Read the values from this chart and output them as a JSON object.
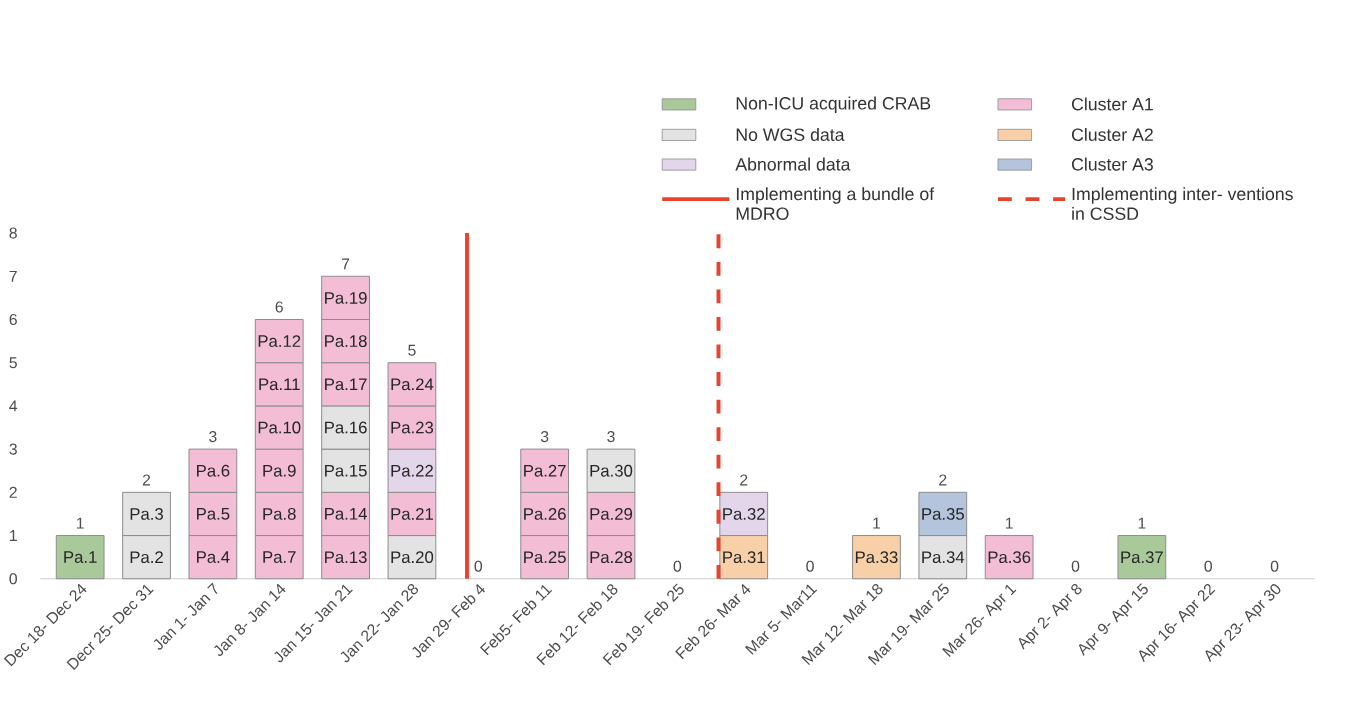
{
  "chart_data": {
    "type": "bar",
    "stacked": true,
    "categories": [
      "Dec 18- Dec 24",
      "Decr 25- Dec 31",
      "Jan 1- Jan 7",
      "Jan 8- Jan 14",
      "Jan 15- Jan 21",
      "Jan 22- Jan 28",
      "Jan 29- Feb 4",
      "Feb5- Feb 11",
      "Feb 12- Feb 18",
      "Feb 19- Feb 25",
      "Feb 26- Mar 4",
      "Mar 5- Mar11",
      "Mar 12- Mar 18",
      "Mar 19- Mar 25",
      "Mar 26- Apr 1",
      "Apr 2- Apr 8",
      "Apr 9- Apr 15",
      "Apr 16- Apr 22",
      "Apr 23- Apr 30"
    ],
    "series": [
      {
        "values": [
          1,
          1,
          1,
          1,
          1,
          1,
          null,
          1,
          1,
          null,
          1,
          null,
          1,
          1,
          1,
          null,
          1,
          null,
          null
        ],
        "colors": [
          "#a9c99b",
          "#e3e3e3",
          "#f2bdd5",
          "#f2bdd5",
          "#f2bdd5",
          "#e3e3e3",
          null,
          "#f2bdd5",
          "#f2bdd5",
          null,
          "#f8d0a8",
          null,
          "#f8d0a8",
          "#e3e3e3",
          "#f2bdd5",
          null,
          "#a9c99b",
          null,
          null
        ],
        "value_labels": [
          "Pa.1",
          "Pa.2",
          "Pa.4",
          "Pa.7",
          "Pa.13",
          "Pa.20",
          null,
          "Pa.25",
          "Pa.28",
          null,
          "Pa.31",
          null,
          "Pa.33",
          "Pa.34",
          "Pa.36",
          null,
          "Pa.37",
          null,
          null
        ]
      },
      {
        "values": [
          null,
          1,
          1,
          1,
          1,
          1,
          null,
          1,
          1,
          null,
          1,
          null,
          null,
          1,
          null,
          null,
          null,
          null,
          null
        ],
        "colors": [
          null,
          "#e3e3e3",
          "#f2bdd5",
          "#f2bdd5",
          "#f2bdd5",
          "#f2bdd5",
          null,
          "#f2bdd5",
          "#f2bdd5",
          null,
          "#e3d6ea",
          null,
          null,
          "#b4c4dd",
          null,
          null,
          null,
          null,
          null
        ],
        "value_labels": [
          null,
          "Pa.3",
          "Pa.5",
          "Pa.8",
          "Pa.14",
          "Pa.21",
          null,
          "Pa.26",
          "Pa.29",
          null,
          "Pa.32",
          null,
          null,
          "Pa.35",
          null,
          null,
          null,
          null,
          null
        ]
      },
      {
        "values": [
          null,
          null,
          1,
          1,
          1,
          1,
          null,
          1,
          1,
          null,
          null,
          null,
          null,
          null,
          null,
          null,
          null,
          null,
          null
        ],
        "colors": [
          null,
          null,
          "#f2bdd5",
          "#f2bdd5",
          "#e3e3e3",
          "#e3d6ea",
          null,
          "#f2bdd5",
          "#e3e3e3",
          null,
          null,
          null,
          null,
          null,
          null,
          null,
          null,
          null,
          null
        ],
        "value_labels": [
          null,
          null,
          "Pa.6",
          "Pa.9",
          "Pa.15",
          "Pa.22",
          null,
          "Pa.27",
          "Pa.30",
          null,
          null,
          null,
          null,
          null,
          null,
          null,
          null,
          null,
          null
        ]
      },
      {
        "values": [
          null,
          null,
          null,
          1,
          1,
          1,
          null,
          null,
          null,
          null,
          null,
          null,
          null,
          null,
          null,
          null,
          null,
          null,
          null
        ],
        "colors": [
          null,
          null,
          null,
          "#f2bdd5",
          "#e3e3e3",
          "#f2bdd5",
          null,
          null,
          null,
          null,
          null,
          null,
          null,
          null,
          null,
          null,
          null,
          null,
          null
        ],
        "value_labels": [
          null,
          null,
          null,
          "Pa.10",
          "Pa.16",
          "Pa.23",
          null,
          null,
          null,
          null,
          null,
          null,
          null,
          null,
          null,
          null,
          null,
          null,
          null
        ]
      },
      {
        "values": [
          null,
          null,
          null,
          1,
          1,
          1,
          null,
          null,
          null,
          null,
          null,
          null,
          null,
          null,
          null,
          null,
          null,
          null,
          null
        ],
        "colors": [
          null,
          null,
          null,
          "#f2bdd5",
          "#f2bdd5",
          "#f2bdd5",
          null,
          null,
          null,
          null,
          null,
          null,
          null,
          null,
          null,
          null,
          null,
          null,
          null
        ],
        "value_labels": [
          null,
          null,
          null,
          "Pa.11",
          "Pa.17",
          "Pa.24",
          null,
          null,
          null,
          null,
          null,
          null,
          null,
          null,
          null,
          null,
          null,
          null,
          null
        ]
      },
      {
        "values": [
          null,
          null,
          null,
          1,
          1,
          null,
          null,
          null,
          null,
          null,
          null,
          null,
          null,
          null,
          null,
          null,
          null,
          null,
          null
        ],
        "colors": [
          null,
          null,
          null,
          "#f2bdd5",
          "#f2bdd5",
          null,
          null,
          null,
          null,
          null,
          null,
          null,
          null,
          null,
          null,
          null,
          null,
          null,
          null
        ],
        "value_labels": [
          null,
          null,
          null,
          "Pa.12",
          "Pa.18",
          null,
          null,
          null,
          null,
          null,
          null,
          null,
          null,
          null,
          null,
          null,
          null,
          null,
          null
        ]
      },
      {
        "values": [
          null,
          null,
          null,
          null,
          1,
          null,
          null,
          null,
          null,
          null,
          null,
          null,
          null,
          null,
          null,
          null,
          null,
          null,
          null
        ],
        "colors": [
          null,
          null,
          null,
          null,
          "#f2bdd5",
          null,
          null,
          null,
          null,
          null,
          null,
          null,
          null,
          null,
          null,
          null,
          null,
          null,
          null
        ],
        "value_labels": [
          null,
          null,
          null,
          null,
          "Pa.19",
          null,
          null,
          null,
          null,
          null,
          null,
          null,
          null,
          null,
          null,
          null,
          null,
          null,
          null
        ]
      },
      {
        "name": "Non-ICU acquired CRAB",
        "color": "#a9c99b",
        "values": [
          null,
          null,
          null,
          null,
          null,
          null,
          null,
          null,
          null,
          null,
          null,
          null,
          null,
          null,
          null,
          null,
          null,
          null,
          null
        ]
      },
      {
        "name": "Cluster A1",
        "color": "#f2bdd5",
        "values": [
          null,
          null,
          null,
          null,
          null,
          null,
          null,
          null,
          null,
          null,
          null,
          null,
          null,
          null,
          null,
          null,
          null,
          null,
          null
        ]
      },
      {
        "name": "No WGS data",
        "color": "#e3e3e3",
        "values": [
          null,
          null,
          null,
          null,
          null,
          null,
          null,
          null,
          null,
          null,
          null,
          null,
          null,
          null,
          null,
          null,
          null,
          null,
          null
        ]
      },
      {
        "name": "Cluster A2",
        "color": "#f8d0a8",
        "values": [
          null,
          null,
          null,
          null,
          null,
          null,
          null,
          null,
          null,
          null,
          null,
          null,
          null,
          null,
          null,
          null,
          null,
          null,
          null
        ]
      },
      {
        "name": "Abnormal data",
        "color": "#e3d6ea",
        "values": [
          null,
          null,
          null,
          null,
          null,
          null,
          null,
          null,
          null,
          null,
          null,
          null,
          null,
          null,
          null,
          null,
          null,
          null,
          null
        ]
      },
      {
        "name": "Cluster A3",
        "color": "#b4c4dd",
        "values": [
          null,
          null,
          null,
          null,
          null,
          null,
          null,
          null,
          null,
          null,
          null,
          null,
          null,
          null,
          null,
          null,
          null,
          null,
          null
        ]
      }
    ],
    "totals": [
      "1",
      "2",
      "3",
      "6",
      "7",
      "5",
      "0",
      "3",
      "3",
      "0",
      "2",
      "0",
      "1",
      "2",
      "1",
      "0",
      "1",
      "0",
      "0"
    ],
    "ref_lines": [
      {
        "axis": "x",
        "value": "Jan 29- Feb 4",
        "label": "Implementing a bundle of MDRO",
        "color": "#e8432e",
        "line_style": "solid"
      },
      {
        "axis": "x",
        "value": "Feb 26- Mar 4",
        "label": "Implementing inter- ventions in CSSD",
        "color": "#e8432e",
        "line_style": "dashed"
      }
    ],
    "ylim": [
      0,
      8
    ],
    "yticks": [
      0,
      1,
      2,
      3,
      4,
      5,
      6,
      7,
      8
    ],
    "legend": "top right"
  }
}
